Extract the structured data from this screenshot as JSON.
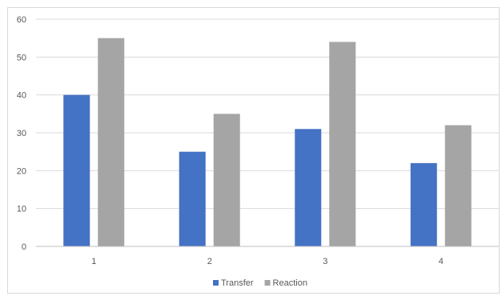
{
  "chart_data": {
    "type": "bar",
    "title": "",
    "xlabel": "",
    "ylabel": "",
    "categories": [
      "1",
      "2",
      "3",
      "4"
    ],
    "ylim": [
      0,
      60
    ],
    "yticks": [
      0,
      10,
      20,
      30,
      40,
      50,
      60
    ],
    "grid": true,
    "legend_position": "bottom",
    "series": [
      {
        "name": "Transfer",
        "color": "#4472c4",
        "values": [
          40,
          25,
          31,
          22
        ]
      },
      {
        "name": "Reaction",
        "color": "#a5a5a5",
        "values": [
          55,
          35,
          54,
          32
        ]
      }
    ]
  }
}
